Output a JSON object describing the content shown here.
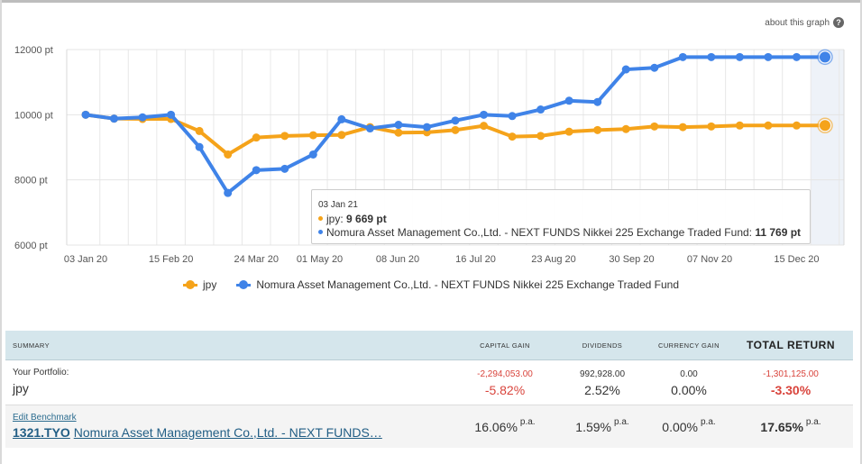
{
  "about_link": "about this graph",
  "about_icon": "help-icon",
  "colors": {
    "jpy": "#f5a31a",
    "fund": "#3f83e8",
    "highlight_band": "#eef2f8",
    "negative": "#d9443c"
  },
  "chart_data": {
    "type": "line",
    "x": [
      "03 Jan 20",
      "17 Jan 20",
      "31 Jan 20",
      "15 Feb 20",
      "28 Feb 20",
      "10 Mar 20",
      "24 Mar 20",
      "07 Apr 20",
      "21 Apr 20",
      "05 May 20",
      "19 May 20",
      "02 Jun 20",
      "16 Jun 20",
      "30 Jun 20",
      "14 Jul 20",
      "28 Jul 20",
      "11 Aug 20",
      "25 Aug 20",
      "08 Sep 20",
      "22 Sep 20",
      "06 Oct 20",
      "20 Oct 20",
      "03 Nov 20",
      "17 Nov 20",
      "01 Dec 20",
      "15 Dec 20",
      "03 Jan 21"
    ],
    "tick_labels": [
      "03 Jan 20",
      "15 Feb 20",
      "24 Mar 20",
      "01 May 20",
      "08 Jun 20",
      "16 Jul 20",
      "23 Aug 20",
      "30 Sep 20",
      "07 Nov 20",
      "15 Dec 20"
    ],
    "ylim": [
      6000,
      12000
    ],
    "yticks": [
      6000,
      8000,
      10000,
      12000
    ],
    "ytick_labels": [
      "6000 pt",
      "8000 pt",
      "10000 pt",
      "12000 pt"
    ],
    "xlabel": "",
    "ylabel": "",
    "grid": true,
    "legend_position": "bottom-center",
    "series": [
      {
        "name": "jpy",
        "values": [
          10000,
          9880,
          9870,
          9870,
          9500,
          8780,
          9300,
          9350,
          9370,
          9380,
          9620,
          9450,
          9460,
          9530,
          9660,
          9330,
          9350,
          9480,
          9530,
          9560,
          9640,
          9620,
          9640,
          9669,
          9669,
          9669,
          9669
        ]
      },
      {
        "name": "Nomura Asset Management Co.,Ltd. - NEXT FUNDS Nikkei 225 Exchange Traded Fund",
        "values": [
          10000,
          9880,
          9920,
          10000,
          9010,
          7600,
          8300,
          8340,
          8780,
          9860,
          9580,
          9690,
          9620,
          9820,
          10000,
          9960,
          10160,
          10430,
          10390,
          11390,
          11440,
          11769,
          11769,
          11769,
          11769,
          11769,
          11769
        ]
      }
    ]
  },
  "tooltip": {
    "date": "03 Jan 21",
    "jpy_label": "jpy: ",
    "jpy_value": "9 669 pt",
    "fund_label": "Nomura Asset Management Co.,Ltd. - NEXT FUNDS Nikkei 225 Exchange Traded Fund: ",
    "fund_value": "11 769 pt"
  },
  "legend": [
    {
      "label": "jpy",
      "color": "#f5a31a"
    },
    {
      "label": "Nomura Asset Management Co.,Ltd. - NEXT FUNDS Nikkei 225 Exchange Traded Fund",
      "color": "#3f83e8"
    }
  ],
  "summary": {
    "headers": {
      "summary": "SUMMARY",
      "capital_gain": "CAPITAL GAIN",
      "dividends": "DIVIDENDS",
      "currency_gain": "CURRENCY GAIN",
      "total_return": "TOTAL RETURN"
    },
    "portfolio": {
      "label": "Your Portfolio:",
      "name": "jpy",
      "capital_gain_amount": "-2,294,053.00",
      "capital_gain_pct": "-5.82%",
      "dividends_amount": "992,928.00",
      "dividends_pct": "2.52%",
      "currency_gain_amount": "0.00",
      "currency_gain_pct": "0.00%",
      "total_return_amount": "-1,301,125.00",
      "total_return_pct": "-3.30%"
    },
    "benchmark": {
      "edit_label": "Edit Benchmark",
      "ticker": "1321.TYO",
      "name": "Nomura Asset Management Co.,Ltd. - NEXT FUNDS…",
      "capital_gain": "16.06%",
      "dividends": "1.59%",
      "currency_gain": "0.00%",
      "total_return": "17.65%",
      "pa_suffix": "p.a."
    }
  }
}
